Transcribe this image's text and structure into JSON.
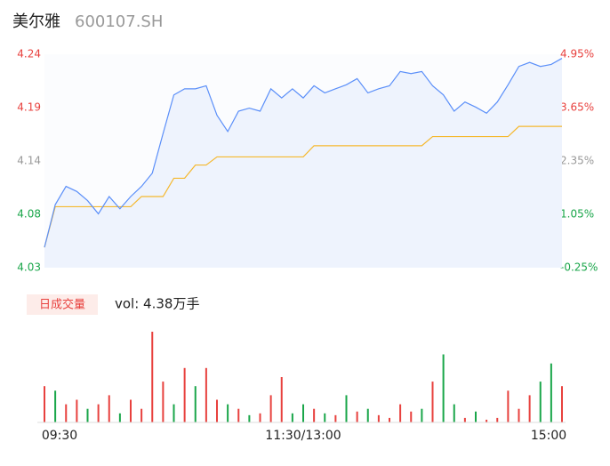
{
  "header": {
    "name": "美尔雅",
    "code": "600107.SH"
  },
  "badge": "日成交量",
  "volume_label": "vol: 4.38万手",
  "chart_data": {
    "type": "line",
    "x": [
      0,
      5,
      10,
      15,
      20,
      25,
      30,
      35,
      40,
      45,
      50,
      55,
      60,
      65,
      70,
      75,
      80,
      85,
      90,
      95,
      100,
      105,
      110,
      115,
      120,
      125,
      130,
      135,
      140,
      145,
      150,
      155,
      160,
      165,
      170,
      175,
      180,
      185,
      190,
      195,
      200,
      205,
      210,
      215,
      220,
      225,
      230,
      235,
      240
    ],
    "xlim": [
      0,
      240
    ],
    "xticks": [
      {
        "value": 0,
        "label": "09:30"
      },
      {
        "value": 120,
        "label": "11:30/13:00"
      },
      {
        "value": 240,
        "label": "15:00"
      }
    ],
    "ylim": [
      4.03,
      4.24
    ],
    "yticks": [
      4.03,
      {
        "value": 4.0825,
        "label": "4.08"
      },
      {
        "value": 4.135,
        "label": "4.14"
      },
      {
        "value": 4.1875,
        "label": "4.19"
      },
      4.24
    ],
    "ytick_colors": [
      "#1aa64a",
      "#1aa64a",
      "#999999",
      "#e8413e",
      "#e8413e"
    ],
    "y2lim": [
      -0.25,
      4.95
    ],
    "y2ticks": [
      {
        "value": -0.25,
        "label": "-0.25%"
      },
      {
        "value": 1.05,
        "label": "1.05%"
      },
      {
        "value": 2.35,
        "label": "2.35%"
      },
      {
        "value": 3.65,
        "label": "3.65%"
      },
      {
        "value": 4.95,
        "label": "4.95%"
      }
    ],
    "y2tick_colors": [
      "#1aa64a",
      "#1aa64a",
      "#999999",
      "#e8413e",
      "#e8413e"
    ],
    "series": [
      {
        "name": "price",
        "color": "#5b8ff9",
        "values": [
          4.05,
          4.092,
          4.11,
          4.105,
          4.096,
          4.083,
          4.1,
          4.088,
          4.1,
          4.11,
          4.123,
          4.162,
          4.2,
          4.206,
          4.206,
          4.209,
          4.18,
          4.164,
          4.184,
          4.187,
          4.184,
          4.206,
          4.197,
          4.206,
          4.197,
          4.209,
          4.202,
          4.206,
          4.21,
          4.216,
          4.202,
          4.206,
          4.209,
          4.223,
          4.221,
          4.223,
          4.209,
          4.2,
          4.184,
          4.193,
          4.188,
          4.182,
          4.193,
          4.21,
          4.228,
          4.232,
          4.228,
          4.23,
          4.236
        ]
      },
      {
        "name": "average",
        "color": "#f5b82e",
        "values": [
          4.05,
          4.09,
          4.09,
          4.09,
          4.09,
          4.09,
          4.09,
          4.09,
          4.09,
          4.1,
          4.1,
          4.1,
          4.118,
          4.118,
          4.131,
          4.131,
          4.139,
          4.139,
          4.139,
          4.139,
          4.139,
          4.139,
          4.139,
          4.139,
          4.139,
          4.15,
          4.15,
          4.15,
          4.15,
          4.15,
          4.15,
          4.15,
          4.15,
          4.15,
          4.15,
          4.15,
          4.159,
          4.159,
          4.159,
          4.159,
          4.159,
          4.159,
          4.159,
          4.159,
          4.169,
          4.169,
          4.169,
          4.169,
          4.169
        ]
      }
    ],
    "volume": {
      "ylim": [
        0,
        100
      ],
      "series": [
        {
          "name": "up",
          "color": "#e8413e",
          "values": [
            40,
            null,
            20,
            25,
            null,
            20,
            30,
            null,
            25,
            15,
            100,
            45,
            null,
            60,
            null,
            60,
            25,
            null,
            15,
            null,
            10,
            30,
            50,
            null,
            null,
            15,
            null,
            8,
            null,
            12,
            null,
            8,
            5,
            20,
            12,
            null,
            45,
            null,
            null,
            5,
            null,
            3,
            5,
            35,
            15,
            30,
            null,
            null,
            40
          ]
        },
        {
          "name": "down",
          "color": "#1aa64a",
          "values": [
            null,
            35,
            null,
            null,
            15,
            null,
            null,
            10,
            null,
            null,
            null,
            null,
            20,
            null,
            40,
            null,
            null,
            20,
            null,
            8,
            null,
            null,
            null,
            10,
            20,
            null,
            10,
            null,
            30,
            null,
            15,
            null,
            null,
            null,
            null,
            15,
            null,
            75,
            20,
            null,
            12,
            null,
            null,
            null,
            null,
            null,
            45,
            65,
            null
          ]
        }
      ]
    }
  }
}
